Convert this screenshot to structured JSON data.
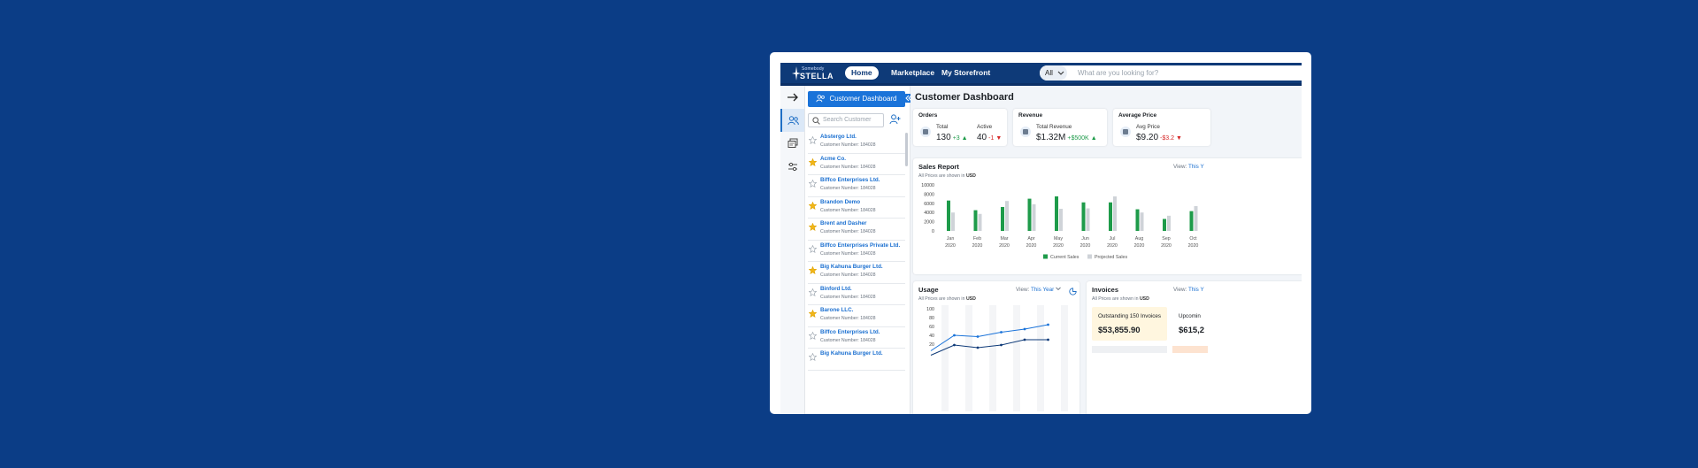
{
  "app": {
    "logo_small": "Somebody",
    "logo_name": "STELLA"
  },
  "topnav": {
    "items": [
      {
        "label": "Home",
        "active": true
      },
      {
        "label": "Marketplace",
        "active": false
      },
      {
        "label": "My Storefront",
        "active": false
      }
    ],
    "scope": "All",
    "search_placeholder": "What are you looking for?"
  },
  "rail": {
    "icons": [
      "expand-arrow-icon",
      "customers-icon",
      "catalog-icon",
      "settings-sliders-icon"
    ]
  },
  "customers": {
    "dashboard_button": "Customer Dashboard",
    "search_placeholder": "Search Customer",
    "items": [
      {
        "name": "Abstergo Ltd.",
        "number": "Customer Number: 184028",
        "starred": false
      },
      {
        "name": "Acme Co.",
        "number": "Customer Number: 184028",
        "starred": true
      },
      {
        "name": "Biffco Enterprises Ltd.",
        "number": "Customer Number: 184028",
        "starred": false
      },
      {
        "name": "Brandon Demo",
        "number": "Customer Number: 184028",
        "starred": true
      },
      {
        "name": "Brent and Dasher",
        "number": "Customer Number: 184028",
        "starred": true
      },
      {
        "name": "Biffco Enterprises Private Ltd.",
        "number": "Customer Number: 184028",
        "starred": false
      },
      {
        "name": "Big Kahuna Burger Ltd.",
        "number": "Customer Number: 184028",
        "starred": true
      },
      {
        "name": "Binford Ltd.",
        "number": "Customer Number: 184028",
        "starred": false
      },
      {
        "name": "Barone LLC.",
        "number": "Customer Number: 184028",
        "starred": true
      },
      {
        "name": "Biffco Enterprises Ltd.",
        "number": "Customer Number: 184028",
        "starred": false
      },
      {
        "name": "Big Kahuna Burger Ltd.",
        "number": "",
        "starred": false
      }
    ]
  },
  "dashboard": {
    "title": "Customer Dashboard",
    "kpis": {
      "orders": {
        "title": "Orders",
        "total_label": "Total",
        "total_value": "130",
        "total_delta": "+3",
        "active_label": "Active",
        "active_value": "40",
        "active_delta": "-1"
      },
      "revenue": {
        "title": "Revenue",
        "label": "Total Revenue",
        "value": "$1.32M",
        "delta": "+$500K"
      },
      "avg_price": {
        "title": "Average Price",
        "label": "Avg Price",
        "value": "$9.20",
        "delta": "-$3.2"
      }
    },
    "sales_report": {
      "title": "Sales Report",
      "subtitle_prefix": "All Prices are shown in",
      "currency": "USD",
      "view_label": "View:",
      "view_value": "This Y"
    },
    "usage": {
      "title": "Usage",
      "subtitle_prefix": "All Prices are shown in",
      "currency": "USD",
      "view_label": "View:",
      "view_value": "This Year"
    },
    "invoices": {
      "title": "Invoices",
      "subtitle_prefix": "All Prices are shown in",
      "currency": "USD",
      "view_label": "View:",
      "view_value": "This Y",
      "outstanding_label": "Outstanding 150 Invoices",
      "outstanding_value": "$53,855.90",
      "upcoming_label": "Upcomin",
      "upcoming_value": "$615,2"
    }
  },
  "colors": {
    "page_bg": "#0b3d86",
    "accent": "#1a73d9",
    "current_sales": "#1e9b4a",
    "projected_sales": "#cfd3d8",
    "usage_line_1": "#1a73d9",
    "usage_line_2": "#0e3a78"
  },
  "chart_data": [
    {
      "type": "bar",
      "title": "Sales Report",
      "categories": [
        "Jan 2020",
        "Feb 2020",
        "Mar 2020",
        "Apr 2020",
        "May 2020",
        "Jun 2020",
        "Jul 2020",
        "Aug 2020",
        "Sep 2020",
        "Oct 2020"
      ],
      "series": [
        {
          "name": "Current Sales",
          "values": [
            6600,
            4500,
            5200,
            7000,
            7500,
            6200,
            6200,
            4700,
            2600,
            4300
          ]
        },
        {
          "name": "Projected Sales",
          "values": [
            4000,
            3700,
            6500,
            5800,
            4800,
            4900,
            7500,
            4000,
            3300,
            5400
          ]
        }
      ],
      "yticks": [
        0,
        2000,
        4000,
        6000,
        8000,
        10000
      ],
      "ylim": [
        0,
        10000
      ],
      "legend": "bottom",
      "grid": false
    },
    {
      "type": "line",
      "title": "Usage",
      "x": [
        1,
        2,
        3,
        4,
        5,
        6
      ],
      "series": [
        {
          "values": [
            5,
            40,
            37,
            47,
            54,
            64
          ]
        },
        {
          "values": [
            -5,
            18,
            12,
            18,
            30,
            30
          ]
        }
      ],
      "yticks": [
        20,
        40,
        60,
        80,
        100
      ],
      "ylim": [
        0,
        100
      ],
      "grid": false
    }
  ]
}
